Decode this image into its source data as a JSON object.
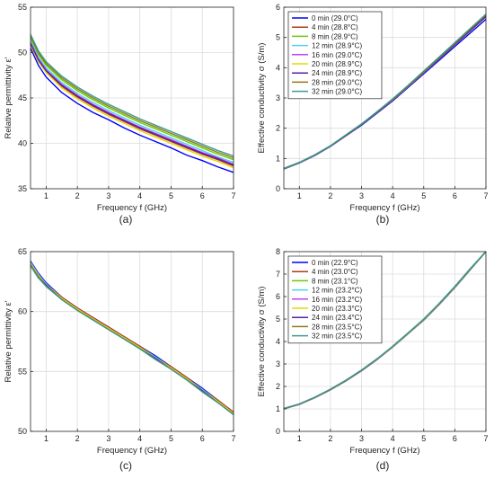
{
  "chart_data": [
    {
      "type": "line",
      "panel_label": "(a)",
      "xlabel": "Frequency f (GHz)",
      "ylabel": "Relative permittivity ε'",
      "xlim": [
        0.5,
        7
      ],
      "ylim": [
        35,
        55
      ],
      "xticks": [
        1,
        2,
        3,
        4,
        5,
        6,
        7
      ],
      "yticks": [
        35,
        40,
        45,
        50,
        55
      ],
      "grid": true,
      "legend": null,
      "x": [
        0.5,
        0.75,
        1.0,
        1.5,
        2.0,
        2.5,
        3.0,
        3.5,
        4.0,
        4.5,
        5.0,
        5.5,
        6.0,
        6.5,
        7.0
      ],
      "series": [
        {
          "name": "0 min",
          "color": "#0000ff",
          "values": [
            50.5,
            48.6,
            47.3,
            45.6,
            44.4,
            43.4,
            42.6,
            41.7,
            40.9,
            40.2,
            39.5,
            38.7,
            38.1,
            37.4,
            36.8
          ]
        },
        {
          "name": "4 min",
          "color": "#b03a1c",
          "values": [
            50.9,
            49.1,
            47.9,
            46.3,
            45.1,
            44.1,
            43.2,
            42.4,
            41.6,
            40.9,
            40.2,
            39.5,
            38.8,
            38.2,
            37.5
          ]
        },
        {
          "name": "8 min",
          "color": "#66cc00",
          "values": [
            51.6,
            49.8,
            48.6,
            47.0,
            45.8,
            44.8,
            43.9,
            43.1,
            42.3,
            41.6,
            40.9,
            40.2,
            39.5,
            38.8,
            38.2
          ]
        },
        {
          "name": "12 min",
          "color": "#4fd0f0",
          "values": [
            51.3,
            49.5,
            48.3,
            46.7,
            45.5,
            44.5,
            43.6,
            42.8,
            42.0,
            41.3,
            40.6,
            39.9,
            39.2,
            38.5,
            37.9
          ]
        },
        {
          "name": "16 min",
          "color": "#c040ff",
          "values": [
            51.1,
            49.3,
            48.1,
            46.5,
            45.3,
            44.3,
            43.4,
            42.6,
            41.8,
            41.1,
            40.4,
            39.7,
            39.0,
            38.4,
            37.7
          ]
        },
        {
          "name": "20 min",
          "color": "#e6d800",
          "values": [
            50.8,
            49.0,
            47.8,
            46.1,
            44.9,
            43.9,
            43.0,
            42.2,
            41.4,
            40.7,
            40.0,
            39.3,
            38.6,
            38.0,
            37.3
          ]
        },
        {
          "name": "24 min",
          "color": "#5a20a0",
          "values": [
            51.0,
            49.2,
            48.0,
            46.4,
            45.2,
            44.2,
            43.3,
            42.5,
            41.7,
            41.0,
            40.3,
            39.6,
            38.9,
            38.3,
            37.6
          ]
        },
        {
          "name": "28 min",
          "color": "#8c7a14",
          "values": [
            51.8,
            50.0,
            48.8,
            47.2,
            46.0,
            45.0,
            44.1,
            43.3,
            42.5,
            41.8,
            41.1,
            40.4,
            39.7,
            39.0,
            38.4
          ]
        },
        {
          "name": "32 min",
          "color": "#3a9c8c",
          "values": [
            52.0,
            50.2,
            49.0,
            47.4,
            46.2,
            45.2,
            44.3,
            43.5,
            42.7,
            42.0,
            41.3,
            40.6,
            39.9,
            39.2,
            38.6
          ]
        }
      ]
    },
    {
      "type": "line",
      "panel_label": "(b)",
      "xlabel": "Frequency f (GHz)",
      "ylabel": "Effective conductivity σ (S/m)",
      "xlim": [
        0.5,
        7
      ],
      "ylim": [
        0,
        6
      ],
      "xticks": [
        1,
        2,
        3,
        4,
        5,
        6,
        7
      ],
      "yticks": [
        0,
        1,
        2,
        3,
        4,
        5,
        6
      ],
      "grid": true,
      "legend": "top-left",
      "x": [
        0.5,
        1.0,
        1.5,
        2.0,
        2.5,
        3.0,
        3.5,
        4.0,
        4.5,
        5.0,
        5.5,
        6.0,
        6.5,
        7.0
      ],
      "series": [
        {
          "name": "0 min (29.0°C)",
          "color": "#0000ff",
          "values": [
            0.65,
            0.85,
            1.1,
            1.4,
            1.75,
            2.1,
            2.5,
            2.9,
            3.35,
            3.8,
            4.25,
            4.7,
            5.15,
            5.6
          ]
        },
        {
          "name": "4 min (28.8°C)",
          "color": "#b03a1c",
          "values": [
            0.66,
            0.86,
            1.11,
            1.41,
            1.76,
            2.12,
            2.52,
            2.93,
            3.38,
            3.84,
            4.3,
            4.76,
            5.22,
            5.68
          ]
        },
        {
          "name": "8 min (28.9°C)",
          "color": "#66cc00",
          "values": [
            0.67,
            0.87,
            1.12,
            1.42,
            1.78,
            2.14,
            2.54,
            2.96,
            3.41,
            3.88,
            4.35,
            4.82,
            5.29,
            5.76
          ]
        },
        {
          "name": "12 min (28.9°C)",
          "color": "#4fd0f0",
          "values": [
            0.66,
            0.87,
            1.12,
            1.42,
            1.77,
            2.13,
            2.53,
            2.95,
            3.4,
            3.86,
            4.33,
            4.8,
            5.26,
            5.72
          ]
        },
        {
          "name": "16 min (29.0°C)",
          "color": "#c040ff",
          "values": [
            0.66,
            0.86,
            1.11,
            1.41,
            1.77,
            2.13,
            2.53,
            2.94,
            3.39,
            3.85,
            4.31,
            4.78,
            5.24,
            5.7
          ]
        },
        {
          "name": "20 min (28.9°C)",
          "color": "#e6d800",
          "values": [
            0.66,
            0.86,
            1.11,
            1.41,
            1.76,
            2.12,
            2.52,
            2.93,
            3.38,
            3.84,
            4.3,
            4.76,
            5.22,
            5.68
          ]
        },
        {
          "name": "24 min (28.9°C)",
          "color": "#5a20a0",
          "values": [
            0.66,
            0.86,
            1.11,
            1.41,
            1.76,
            2.12,
            2.52,
            2.94,
            3.39,
            3.85,
            4.31,
            4.77,
            5.23,
            5.69
          ]
        },
        {
          "name": "28 min (29.0°C)",
          "color": "#8c7a14",
          "values": [
            0.67,
            0.87,
            1.12,
            1.42,
            1.78,
            2.14,
            2.54,
            2.96,
            3.41,
            3.87,
            4.34,
            4.81,
            5.28,
            5.75
          ]
        },
        {
          "name": "32 min (29.0°C)",
          "color": "#3a9c8c",
          "values": [
            0.67,
            0.87,
            1.12,
            1.42,
            1.78,
            2.14,
            2.55,
            2.97,
            3.42,
            3.89,
            4.36,
            4.83,
            5.3,
            5.77
          ]
        }
      ]
    },
    {
      "type": "line",
      "panel_label": "(c)",
      "xlabel": "Frequency f (GHz)",
      "ylabel": "Relative permittivity ε'",
      "xlim": [
        0.5,
        7
      ],
      "ylim": [
        50,
        65
      ],
      "xticks": [
        1,
        2,
        3,
        4,
        5,
        6,
        7
      ],
      "yticks": [
        50,
        55,
        60,
        65
      ],
      "grid": true,
      "legend": null,
      "x": [
        0.5,
        0.75,
        1.0,
        1.5,
        2.0,
        2.5,
        3.0,
        3.5,
        4.0,
        4.5,
        5.0,
        5.5,
        6.0,
        6.5,
        7.0
      ],
      "series": [
        {
          "name": "0 min",
          "color": "#0000ff",
          "values": [
            64.2,
            63.2,
            62.4,
            61.2,
            60.3,
            59.5,
            58.7,
            57.9,
            57.1,
            56.3,
            55.4,
            54.5,
            53.6,
            52.6,
            51.6
          ]
        },
        {
          "name": "4 min",
          "color": "#b03a1c",
          "values": [
            64.1,
            63.1,
            62.3,
            61.2,
            60.3,
            59.5,
            58.7,
            57.9,
            57.1,
            56.2,
            55.4,
            54.5,
            53.5,
            52.6,
            51.6
          ]
        },
        {
          "name": "8 min",
          "color": "#66cc00",
          "values": [
            64.0,
            63.0,
            62.3,
            61.1,
            60.2,
            59.4,
            58.6,
            57.8,
            57.0,
            56.2,
            55.3,
            54.4,
            53.5,
            52.5,
            51.5
          ]
        },
        {
          "name": "12 min",
          "color": "#4fd0f0",
          "values": [
            64.1,
            63.1,
            62.3,
            61.1,
            60.2,
            59.4,
            58.6,
            57.8,
            57.0,
            56.2,
            55.3,
            54.4,
            53.5,
            52.5,
            51.5
          ]
        },
        {
          "name": "16 min",
          "color": "#c040ff",
          "values": [
            64.0,
            63.0,
            62.2,
            61.1,
            60.2,
            59.4,
            58.6,
            57.8,
            57.0,
            56.1,
            55.3,
            54.4,
            53.4,
            52.5,
            51.5
          ]
        },
        {
          "name": "20 min",
          "color": "#e6d800",
          "values": [
            64.0,
            63.0,
            62.2,
            61.1,
            60.2,
            59.4,
            58.6,
            57.8,
            57.0,
            56.1,
            55.3,
            54.4,
            53.4,
            52.5,
            51.5
          ]
        },
        {
          "name": "24 min",
          "color": "#5a20a0",
          "values": [
            63.9,
            62.9,
            62.2,
            61.0,
            60.1,
            59.3,
            58.5,
            57.7,
            56.9,
            56.1,
            55.2,
            54.3,
            53.4,
            52.4,
            51.4
          ]
        },
        {
          "name": "28 min",
          "color": "#8c7a14",
          "values": [
            63.9,
            62.9,
            62.1,
            61.0,
            60.1,
            59.3,
            58.5,
            57.7,
            56.9,
            56.0,
            55.2,
            54.3,
            53.3,
            52.4,
            51.4
          ]
        },
        {
          "name": "32 min",
          "color": "#3a9c8c",
          "values": [
            63.8,
            62.8,
            62.1,
            61.0,
            60.1,
            59.3,
            58.5,
            57.7,
            56.9,
            56.0,
            55.2,
            54.3,
            53.3,
            52.4,
            51.4
          ]
        }
      ]
    },
    {
      "type": "line",
      "panel_label": "(d)",
      "xlabel": "Frequency f (GHz)",
      "ylabel": "Effective conductivity σ (S/m)",
      "xlim": [
        0.5,
        7
      ],
      "ylim": [
        0,
        8
      ],
      "xticks": [
        1,
        2,
        3,
        4,
        5,
        6,
        7
      ],
      "yticks": [
        0,
        1,
        2,
        3,
        4,
        5,
        6,
        7,
        8
      ],
      "grid": true,
      "legend": "top-left",
      "x": [
        0.5,
        1.0,
        1.5,
        2.0,
        2.5,
        3.0,
        3.5,
        4.0,
        4.5,
        5.0,
        5.5,
        6.0,
        6.5,
        7.0
      ],
      "series": [
        {
          "name": "0 min (22.9°C)",
          "color": "#0000ff",
          "values": [
            1.0,
            1.2,
            1.5,
            1.85,
            2.25,
            2.7,
            3.2,
            3.75,
            4.35,
            4.95,
            5.65,
            6.4,
            7.2,
            8.0
          ]
        },
        {
          "name": "4 min (23.0°C)",
          "color": "#b03a1c",
          "values": [
            1.0,
            1.2,
            1.5,
            1.85,
            2.25,
            2.7,
            3.2,
            3.75,
            4.35,
            4.96,
            5.66,
            6.41,
            7.21,
            8.0
          ]
        },
        {
          "name": "8 min (23.1°C)",
          "color": "#66cc00",
          "values": [
            1.01,
            1.21,
            1.51,
            1.86,
            2.26,
            2.71,
            3.21,
            3.76,
            4.36,
            4.97,
            5.67,
            6.42,
            7.22,
            8.0
          ]
        },
        {
          "name": "12 min (23.2°C)",
          "color": "#4fd0f0",
          "values": [
            1.01,
            1.21,
            1.51,
            1.86,
            2.26,
            2.71,
            3.21,
            3.76,
            4.36,
            4.97,
            5.67,
            6.42,
            7.22,
            8.0
          ]
        },
        {
          "name": "16 min (23.2°C)",
          "color": "#c040ff",
          "values": [
            1.01,
            1.21,
            1.51,
            1.86,
            2.26,
            2.71,
            3.21,
            3.77,
            4.37,
            4.98,
            5.68,
            6.43,
            7.23,
            8.0
          ]
        },
        {
          "name": "20 min (23.3°C)",
          "color": "#e6d800",
          "values": [
            1.02,
            1.22,
            1.52,
            1.87,
            2.27,
            2.72,
            3.22,
            3.77,
            4.37,
            4.98,
            5.68,
            6.43,
            7.23,
            8.0
          ]
        },
        {
          "name": "24 min (23.4°C)",
          "color": "#5a20a0",
          "values": [
            1.02,
            1.22,
            1.52,
            1.87,
            2.27,
            2.72,
            3.22,
            3.78,
            4.38,
            4.99,
            5.69,
            6.44,
            7.24,
            8.0
          ]
        },
        {
          "name": "28 min (23.5°C)",
          "color": "#8c7a14",
          "values": [
            1.02,
            1.22,
            1.52,
            1.87,
            2.27,
            2.72,
            3.23,
            3.78,
            4.38,
            4.99,
            5.69,
            6.44,
            7.24,
            8.0
          ]
        },
        {
          "name": "32 min (23.5°C)",
          "color": "#3a9c8c",
          "values": [
            1.02,
            1.22,
            1.52,
            1.88,
            2.28,
            2.73,
            3.23,
            3.79,
            4.39,
            5.0,
            5.7,
            6.45,
            7.25,
            8.0
          ]
        }
      ]
    }
  ]
}
